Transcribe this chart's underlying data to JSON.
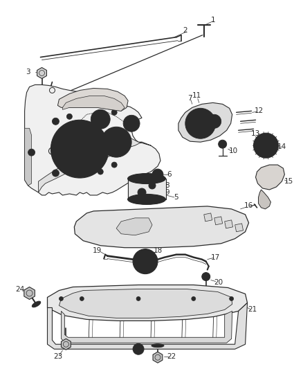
{
  "background_color": "#ffffff",
  "line_color": "#2a2a2a",
  "text_color": "#2a2a2a",
  "fig_width": 4.38,
  "fig_height": 5.33,
  "dpi": 100
}
